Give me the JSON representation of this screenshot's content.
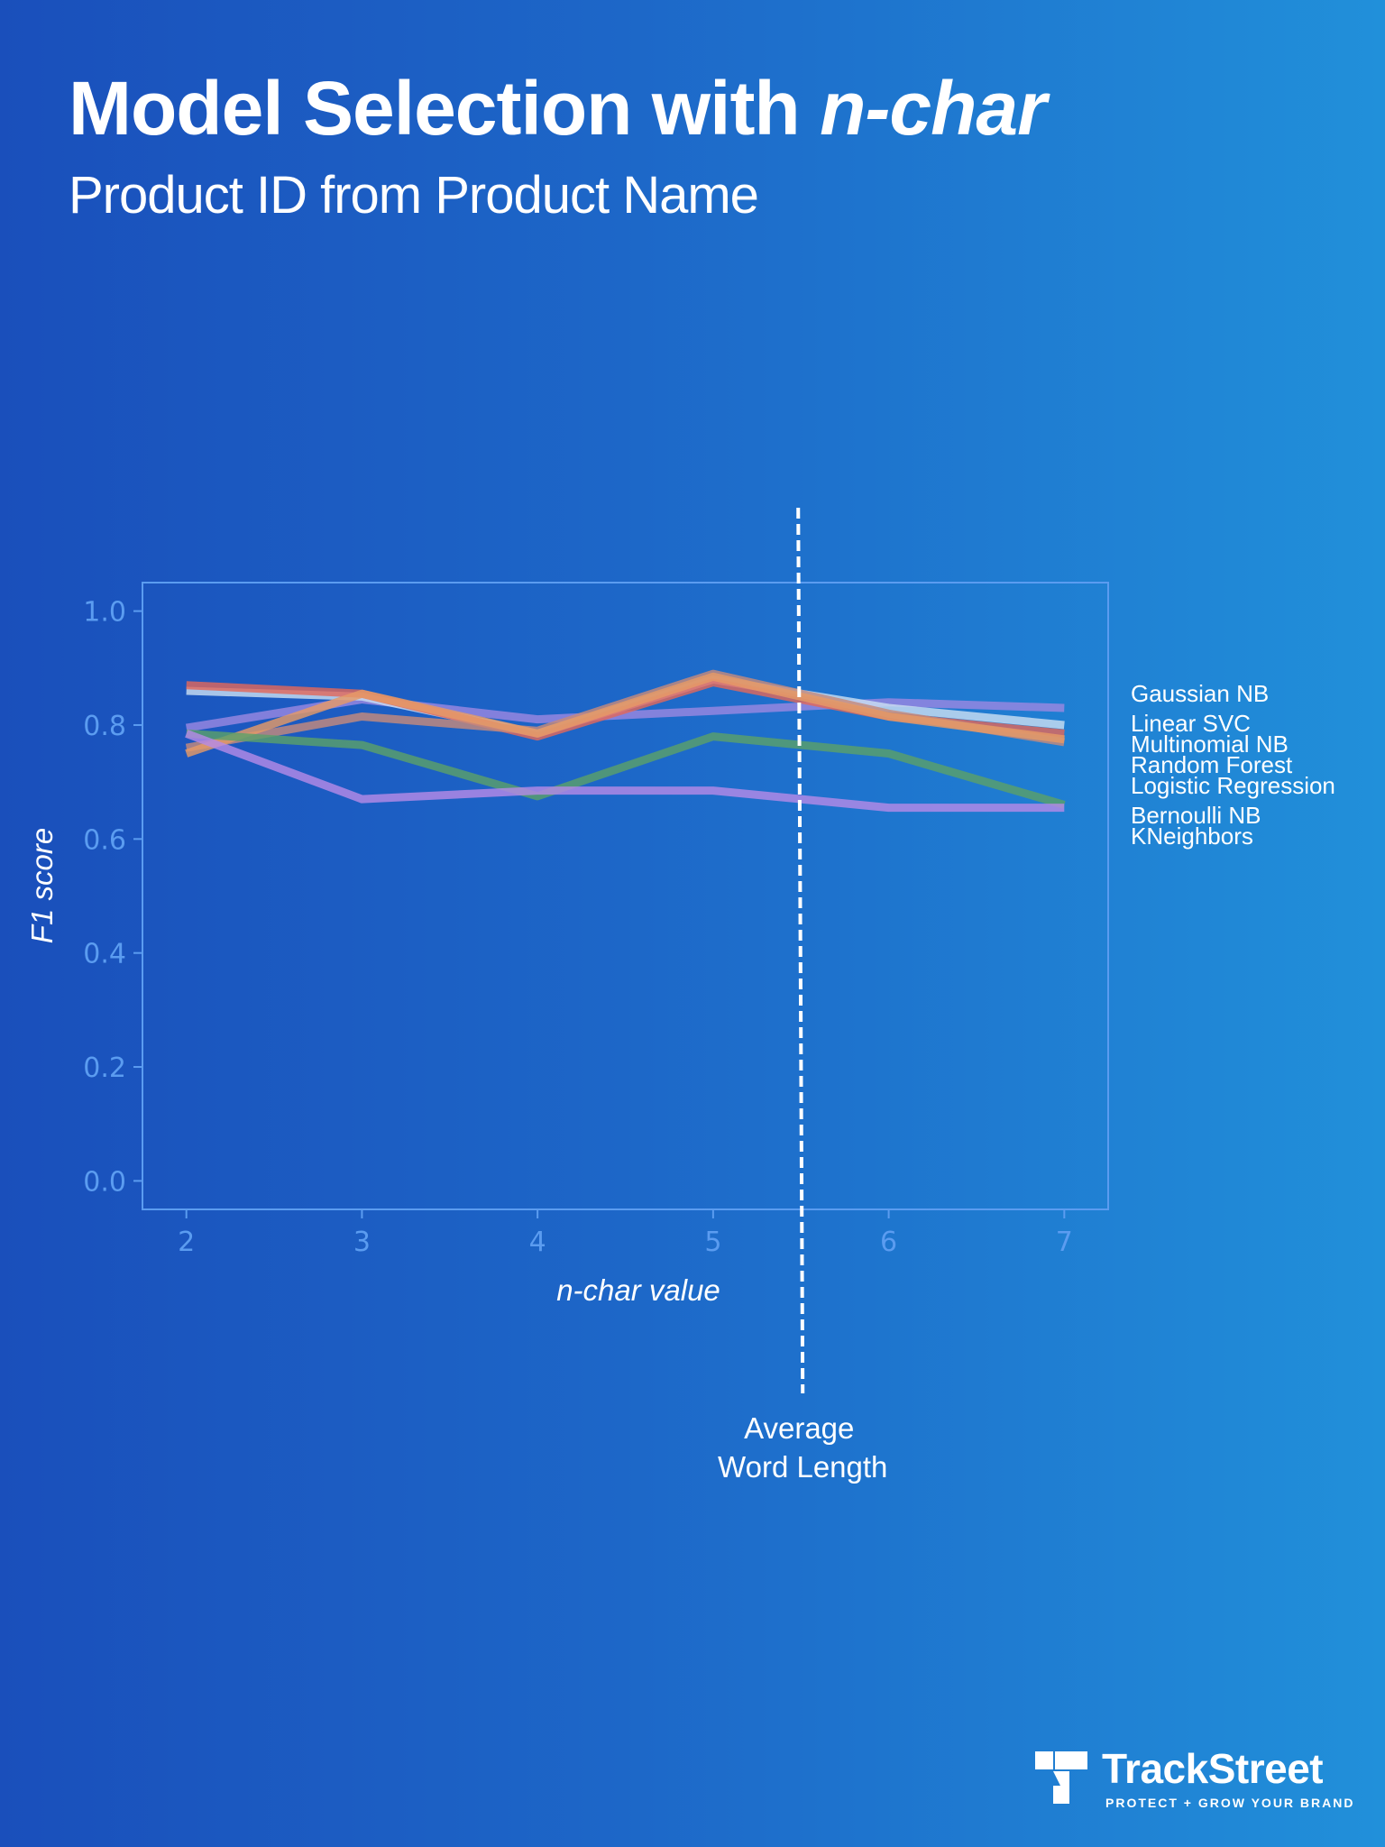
{
  "header": {
    "title_prefix": "Model Selection with ",
    "title_emph": "n-char",
    "subtitle": "Product ID from Product Name"
  },
  "chart_data": {
    "type": "line",
    "x": [
      2,
      3,
      4,
      5,
      6,
      7
    ],
    "xlabel": "n-char value",
    "ylabel": "F1 score",
    "xlim": [
      1.75,
      7.25
    ],
    "ylim": [
      -0.05,
      1.05
    ],
    "yticks": [
      0.0,
      0.2,
      0.4,
      0.6,
      0.8,
      1.0
    ],
    "ytick_labels": [
      "0.0",
      "0.2",
      "0.4",
      "0.6",
      "0.8",
      "1.0"
    ],
    "xtick_labels": [
      "2",
      "3",
      "4",
      "5",
      "6",
      "7"
    ],
    "grid": false,
    "legend_placement": "right, outside plot",
    "series": [
      {
        "name": "Gaussian NB",
        "values": [
          0.795,
          0.845,
          0.81,
          0.825,
          0.84,
          0.83
        ],
        "color": "#9a88e0"
      },
      {
        "name": "Linear SVC",
        "values": [
          0.86,
          0.85,
          0.785,
          0.88,
          0.83,
          0.8
        ],
        "color": "#c9def2"
      },
      {
        "name": "Multinomial NB",
        "values": [
          0.87,
          0.855,
          0.78,
          0.875,
          0.815,
          0.785
        ],
        "color": "#e0685c"
      },
      {
        "name": "Random Forest",
        "values": [
          0.76,
          0.815,
          0.79,
          0.89,
          0.82,
          0.77
        ],
        "color": "#c58a7c"
      },
      {
        "name": "Logistic Regression",
        "values": [
          0.75,
          0.855,
          0.785,
          0.885,
          0.815,
          0.775
        ],
        "color": "#e59a66"
      },
      {
        "name": "Bernoulli NB",
        "values": [
          0.785,
          0.765,
          0.675,
          0.78,
          0.75,
          0.66
        ],
        "color": "#5aa06a"
      },
      {
        "name": "KNeighbors",
        "values": [
          0.785,
          0.67,
          0.685,
          0.685,
          0.655,
          0.655
        ],
        "color": "#b48ae6"
      }
    ],
    "annotation": {
      "x": 5.5,
      "line1": "Average",
      "line2": "Word Length"
    }
  },
  "colors": {
    "axis": "#5b9cf0",
    "tick_text": "#5b9cf0",
    "background_start": "#1a4fbb",
    "background_end": "#2190da"
  },
  "logo": {
    "name": "TrackStreet",
    "tagline": "PROTECT + GROW YOUR BRAND"
  }
}
